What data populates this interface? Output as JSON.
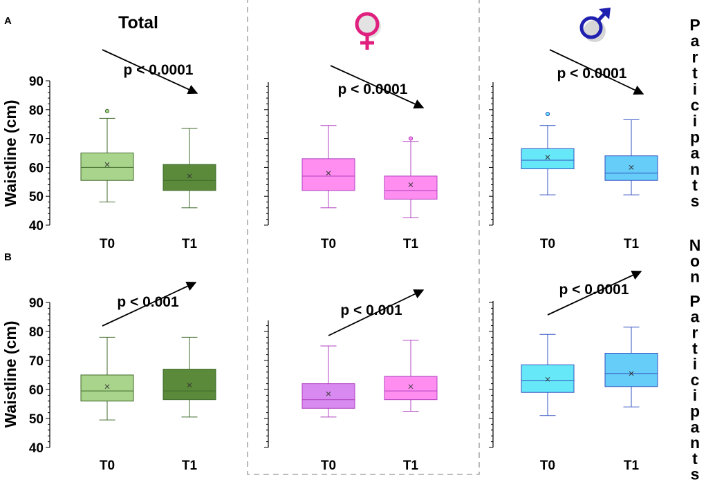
{
  "figure": {
    "panel_a_label": "A",
    "panel_b_label": "B",
    "column_titles": {
      "total": "Total"
    },
    "row_labels": {
      "a": "Participants",
      "b": "Non Participants"
    },
    "y_axis_label": "Waistline (cm)",
    "colors": {
      "total_t0": "#a9d48c",
      "total_t1": "#5a8a3a",
      "total_stroke": "#3f6a2a",
      "female_a_t0": "#ff8ef0",
      "female_a_t1": "#ff8ef0",
      "female_b_t0": "#d88af0",
      "female_b_t1": "#ff8ef0",
      "female_stroke": "#b040c0",
      "male_a_t0": "#66e8f8",
      "male_a_t1": "#66ccf8",
      "male_b_t0": "#66e8f8",
      "male_b_t1": "#66ccf8",
      "male_stroke": "#3050c0",
      "female_symbol": "#e0207f",
      "male_symbol": "#2020b0"
    },
    "icons": {
      "female": "female-symbol-icon",
      "male": "male-symbol-icon"
    }
  },
  "chart_data": [
    {
      "type": "box",
      "panel": "A",
      "group": "Total",
      "ylabel": "Waistline (cm)",
      "ylim": [
        40,
        90
      ],
      "yticks": [
        40,
        50,
        60,
        70,
        80,
        90
      ],
      "show_tick_labels": true,
      "categories": [
        "T0",
        "T1"
      ],
      "boxes": [
        {
          "label": "T0",
          "min": 48,
          "q1": 55.5,
          "median": 60,
          "q3": 65,
          "max": 77,
          "mean": 61,
          "outliers": [
            79.5
          ]
        },
        {
          "label": "T1",
          "min": 46,
          "q1": 52,
          "median": 55.5,
          "q3": 61,
          "max": 73.5,
          "mean": 57,
          "outliers": []
        }
      ],
      "annotation": {
        "text": "p < 0.0001",
        "trend": "down"
      }
    },
    {
      "type": "box",
      "panel": "A",
      "group": "Female",
      "ylabel": "",
      "ylim": [
        40,
        90
      ],
      "yticks": [
        40,
        50,
        60,
        70,
        80,
        90
      ],
      "show_tick_labels": false,
      "categories": [
        "T0",
        "T1"
      ],
      "boxes": [
        {
          "label": "T0",
          "min": 46,
          "q1": 52,
          "median": 57,
          "q3": 63,
          "max": 74.5,
          "mean": 58,
          "outliers": []
        },
        {
          "label": "T1",
          "min": 42.5,
          "q1": 49,
          "median": 52,
          "q3": 57,
          "max": 69,
          "mean": 54,
          "outliers": [
            70
          ]
        }
      ],
      "annotation": {
        "text": "p < 0.0001",
        "trend": "down"
      }
    },
    {
      "type": "box",
      "panel": "A",
      "group": "Male",
      "ylabel": "",
      "ylim": [
        40,
        90
      ],
      "yticks": [
        40,
        50,
        60,
        70,
        80,
        90
      ],
      "show_tick_labels": false,
      "categories": [
        "T0",
        "T1"
      ],
      "boxes": [
        {
          "label": "T0",
          "min": 50.5,
          "q1": 59.5,
          "median": 62.5,
          "q3": 66.5,
          "max": 74.5,
          "mean": 63.5,
          "outliers": [
            78.5
          ]
        },
        {
          "label": "T1",
          "min": 50.5,
          "q1": 55.5,
          "median": 58,
          "q3": 64,
          "max": 76.5,
          "mean": 60,
          "outliers": []
        }
      ],
      "annotation": {
        "text": "p < 0.0001",
        "trend": "down"
      }
    },
    {
      "type": "box",
      "panel": "B",
      "group": "Total",
      "ylabel": "Waistline (cm)",
      "ylim": [
        40,
        90
      ],
      "yticks": [
        40,
        50,
        60,
        70,
        80,
        90
      ],
      "show_tick_labels": true,
      "categories": [
        "T0",
        "T1"
      ],
      "boxes": [
        {
          "label": "T0",
          "min": 49.5,
          "q1": 56,
          "median": 59.5,
          "q3": 65,
          "max": 78,
          "mean": 61,
          "outliers": []
        },
        {
          "label": "T1",
          "min": 50.5,
          "q1": 56.5,
          "median": 59.5,
          "q3": 67,
          "max": 78,
          "mean": 61.5,
          "outliers": []
        }
      ],
      "annotation": {
        "text": "p < 0.001",
        "trend": "up"
      }
    },
    {
      "type": "box",
      "panel": "B",
      "group": "Female",
      "ylabel": "",
      "ylim": [
        40,
        90
      ],
      "yticks": [
        40,
        50,
        60,
        70,
        80,
        90
      ],
      "show_tick_labels": false,
      "categories": [
        "T0",
        "T1"
      ],
      "boxes": [
        {
          "label": "T0",
          "min": 50.5,
          "q1": 53.5,
          "median": 56.5,
          "q3": 62,
          "max": 75,
          "mean": 58.5,
          "outliers": []
        },
        {
          "label": "T1",
          "min": 52.5,
          "q1": 56.5,
          "median": 59.5,
          "q3": 64.5,
          "max": 77,
          "mean": 61,
          "outliers": []
        }
      ],
      "annotation": {
        "text": "p < 0.001",
        "trend": "up"
      }
    },
    {
      "type": "box",
      "panel": "B",
      "group": "Male",
      "ylabel": "",
      "ylim": [
        40,
        90
      ],
      "yticks": [
        40,
        50,
        60,
        70,
        80,
        90
      ],
      "show_tick_labels": false,
      "categories": [
        "T0",
        "T1"
      ],
      "boxes": [
        {
          "label": "T0",
          "min": 51,
          "q1": 59,
          "median": 63,
          "q3": 68.5,
          "max": 79,
          "mean": 63.5,
          "outliers": []
        },
        {
          "label": "T1",
          "min": 54,
          "q1": 61,
          "median": 65.5,
          "q3": 72.5,
          "max": 81.5,
          "mean": 65.5,
          "outliers": []
        }
      ],
      "annotation": {
        "text": "p < 0.0001",
        "trend": "up"
      }
    }
  ]
}
